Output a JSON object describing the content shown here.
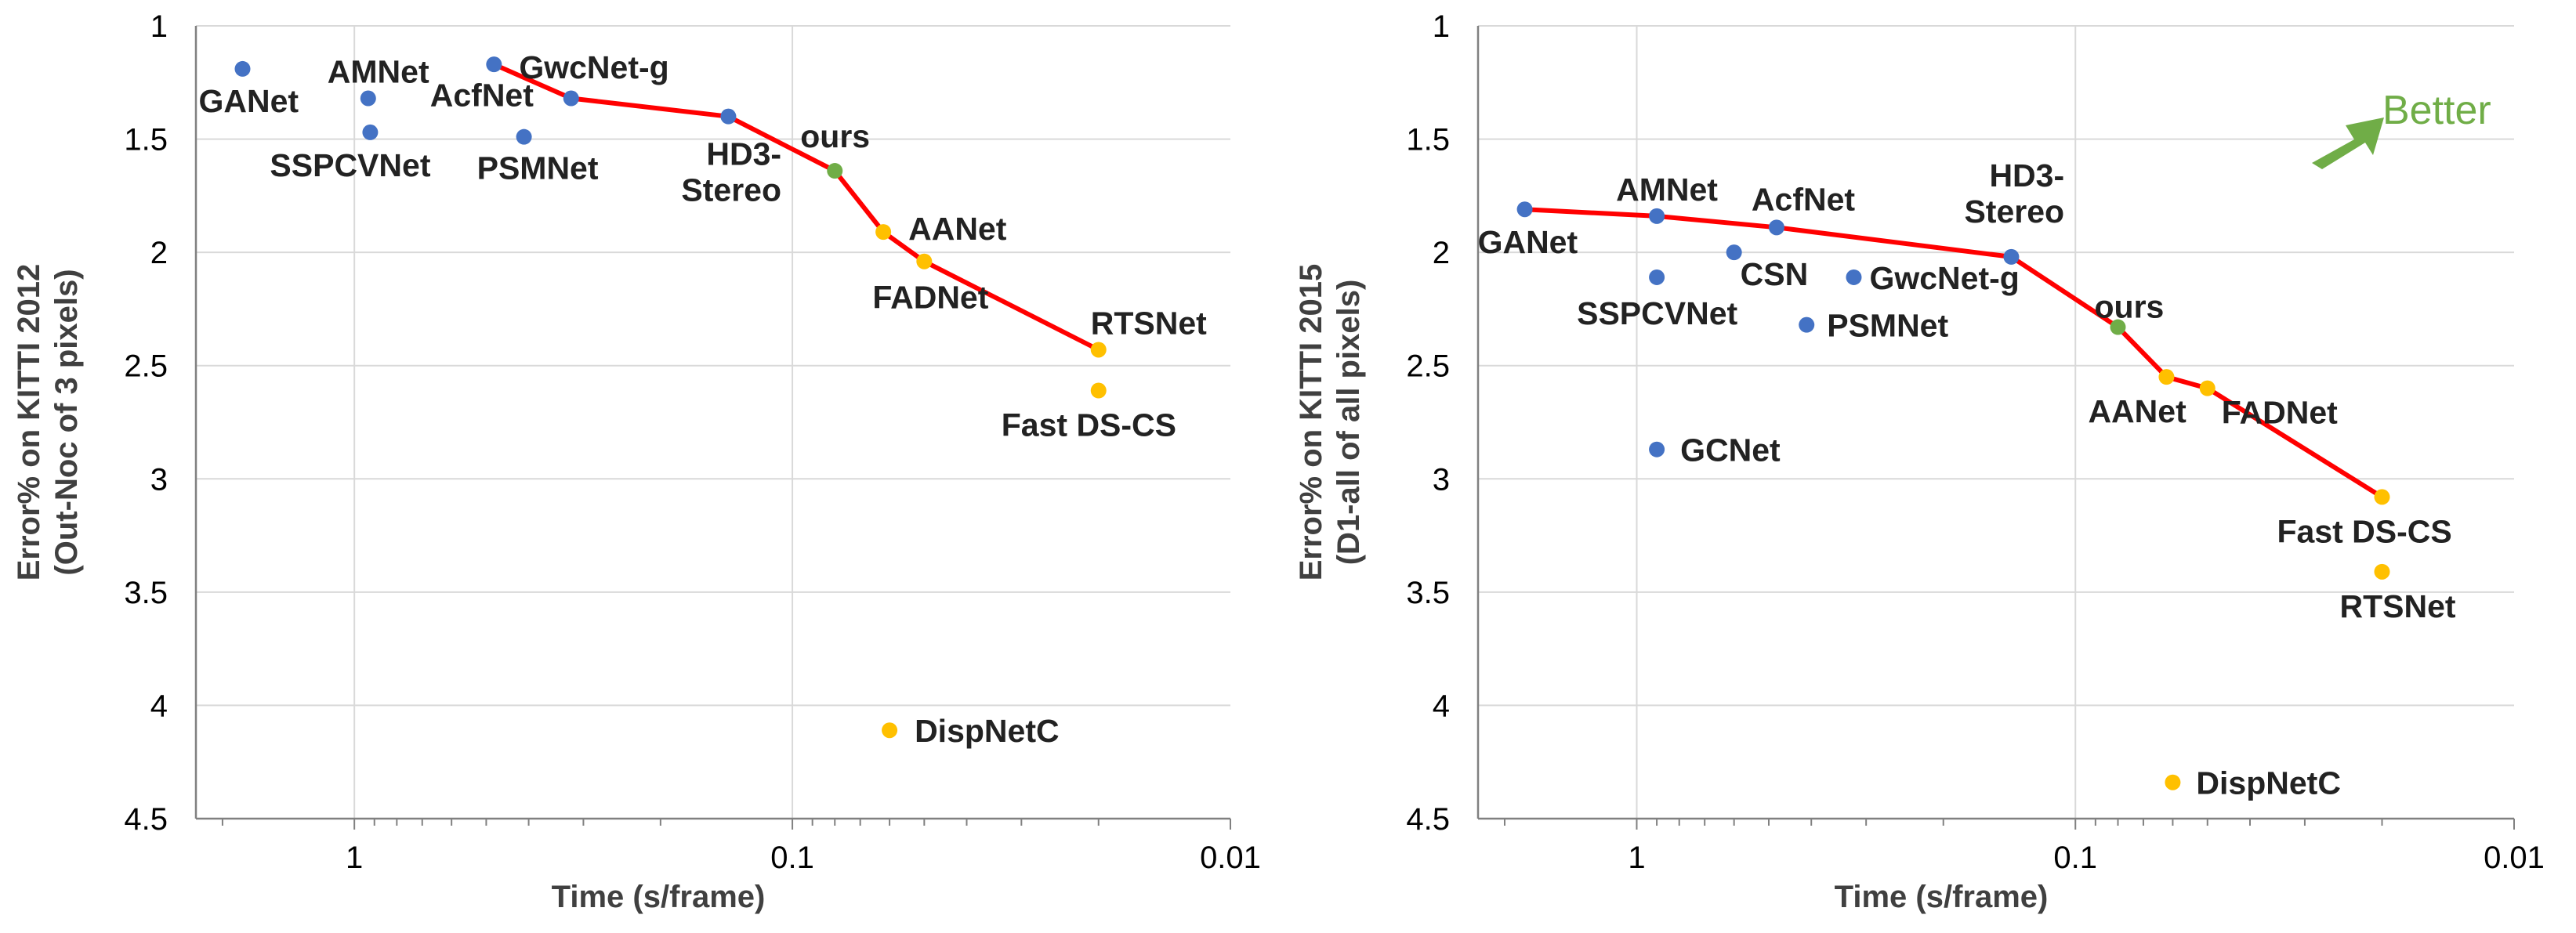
{
  "colors": {
    "blue_point": "#4472c4",
    "yellow_point": "#ffc000",
    "ours_point": "#70ad47",
    "frontier_line": "#ff0000",
    "better_arrow": "#70ad47",
    "grid": "#d9d9d9",
    "axis": "#808080"
  },
  "chart_data": [
    {
      "type": "scatter",
      "xlabel": "Time (s/frame)",
      "ylabel": [
        "Error% on KITTI 2012",
        "(Out-Noc of 3 pixels)"
      ],
      "x_scale": "log",
      "x_reversed": true,
      "xlim": [
        2.3,
        0.01
      ],
      "x_ticks": [
        {
          "value": 1,
          "label": "1"
        },
        {
          "value": 0.1,
          "label": "0.1"
        },
        {
          "value": 0.01,
          "label": "0.01"
        }
      ],
      "y_reversed": true,
      "ylim": [
        1,
        4.5
      ],
      "y_ticks": [
        {
          "value": 1,
          "label": "1"
        },
        {
          "value": 1.5,
          "label": "1.5"
        },
        {
          "value": 2,
          "label": "2"
        },
        {
          "value": 2.5,
          "label": "2.5"
        },
        {
          "value": 3,
          "label": "3"
        },
        {
          "value": 3.5,
          "label": "3.5"
        },
        {
          "value": 4,
          "label": "4"
        },
        {
          "value": 4.5,
          "label": "4.5"
        }
      ],
      "grid": true,
      "points": [
        {
          "name": "GANet",
          "x": 1.8,
          "y": 1.19,
          "color": "blue",
          "label_dx": -56,
          "label_dy": 55
        },
        {
          "name": "AMNet",
          "x": 0.93,
          "y": 1.32,
          "color": "blue",
          "label_dx": -52,
          "label_dy": -20
        },
        {
          "name": "SSPCVNet",
          "x": 0.92,
          "y": 1.47,
          "color": "blue",
          "label_dx": -128,
          "label_dy": 56
        },
        {
          "name": "GwcNet-g",
          "x": 0.48,
          "y": 1.17,
          "color": "blue",
          "label_dx": 32,
          "label_dy": 18
        },
        {
          "name": "AcfNet",
          "x": 0.32,
          "y": 1.32,
          "color": "blue",
          "label_dx": -180,
          "label_dy": 10
        },
        {
          "name": "PSMNet",
          "x": 0.41,
          "y": 1.49,
          "color": "blue",
          "label_dx": -60,
          "label_dy": 54
        },
        {
          "name": "HD3-Stereo",
          "x": 0.14,
          "y": 1.4,
          "color": "blue",
          "label_lines": [
            "HD3-",
            "Stereo"
          ],
          "label_dx": -60,
          "label_dy": 62
        },
        {
          "name": "ours",
          "x": 0.08,
          "y": 1.64,
          "color": "green",
          "label_dx": -44,
          "label_dy": -30
        },
        {
          "name": "AANet",
          "x": 0.062,
          "y": 1.91,
          "color": "yellow",
          "label_dx": 32,
          "label_dy": 10
        },
        {
          "name": "FADNet",
          "x": 0.05,
          "y": 2.04,
          "color": "yellow",
          "label_dx": -66,
          "label_dy": 60
        },
        {
          "name": "RTSNet",
          "x": 0.02,
          "y": 2.43,
          "color": "yellow",
          "label_dx": -10,
          "label_dy": -20
        },
        {
          "name": "Fast DS-CS",
          "x": 0.02,
          "y": 2.61,
          "color": "yellow",
          "label_dx": -124,
          "label_dy": 58
        },
        {
          "name": "DispNetC",
          "x": 0.06,
          "y": 4.11,
          "color": "yellow",
          "label_dx": 32,
          "label_dy": 15
        }
      ],
      "frontier": [
        {
          "x": 0.48,
          "y": 1.17
        },
        {
          "x": 0.32,
          "y": 1.32
        },
        {
          "x": 0.14,
          "y": 1.4
        },
        {
          "x": 0.08,
          "y": 1.64
        },
        {
          "x": 0.062,
          "y": 1.91
        },
        {
          "x": 0.05,
          "y": 2.04
        },
        {
          "x": 0.02,
          "y": 2.43
        }
      ]
    },
    {
      "type": "scatter",
      "xlabel": "Time (s/frame)",
      "ylabel": [
        "Error% on KITTI 2015",
        "(D1-all of all pixels)"
      ],
      "x_scale": "log",
      "x_reversed": true,
      "xlim": [
        2.3,
        0.01
      ],
      "x_ticks": [
        {
          "value": 1,
          "label": "1"
        },
        {
          "value": 0.1,
          "label": "0.1"
        },
        {
          "value": 0.01,
          "label": "0.01"
        }
      ],
      "y_reversed": true,
      "ylim": [
        1,
        4.5
      ],
      "y_ticks": [
        {
          "value": 1,
          "label": "1"
        },
        {
          "value": 1.5,
          "label": "1.5"
        },
        {
          "value": 2,
          "label": "2"
        },
        {
          "value": 2.5,
          "label": "2.5"
        },
        {
          "value": 3,
          "label": "3"
        },
        {
          "value": 3.5,
          "label": "3.5"
        },
        {
          "value": 4,
          "label": "4"
        },
        {
          "value": 4.5,
          "label": "4.5"
        }
      ],
      "grid": true,
      "annotation": "Better",
      "points": [
        {
          "name": "GANet",
          "x": 1.8,
          "y": 1.81,
          "color": "blue",
          "label_dx": -60,
          "label_dy": 56
        },
        {
          "name": "AMNet",
          "x": 0.9,
          "y": 1.84,
          "color": "blue",
          "label_dx": -52,
          "label_dy": -20
        },
        {
          "name": "SSPCVNet",
          "x": 0.9,
          "y": 2.11,
          "color": "blue",
          "label_dx": -102,
          "label_dy": 60
        },
        {
          "name": "CSN",
          "x": 0.6,
          "y": 2.0,
          "color": "blue",
          "label_dx": 8,
          "label_dy": 42
        },
        {
          "name": "AcfNet",
          "x": 0.48,
          "y": 1.89,
          "color": "blue",
          "label_dx": -32,
          "label_dy": -22
        },
        {
          "name": "GwcNet-g",
          "x": 0.32,
          "y": 2.11,
          "color": "blue",
          "label_dx": 20,
          "label_dy": 15
        },
        {
          "name": "PSMNet",
          "x": 0.41,
          "y": 2.32,
          "color": "blue",
          "label_dx": 26,
          "label_dy": 15
        },
        {
          "name": "GCNet",
          "x": 0.9,
          "y": 2.87,
          "color": "blue",
          "label_dx": 30,
          "label_dy": 15
        },
        {
          "name": "HD3-Stereo",
          "x": 0.14,
          "y": 2.02,
          "color": "blue",
          "label_lines": [
            "HD3-",
            "Stereo"
          ],
          "label_dx": -60,
          "label_dy": -90
        },
        {
          "name": "ours",
          "x": 0.08,
          "y": 2.33,
          "color": "green",
          "label_dx": -30,
          "label_dy": -12
        },
        {
          "name": "AANet",
          "x": 0.062,
          "y": 2.55,
          "color": "yellow",
          "label_dx": -100,
          "label_dy": 58
        },
        {
          "name": "FADNet",
          "x": 0.05,
          "y": 2.6,
          "color": "yellow",
          "label_dx": 18,
          "label_dy": 45
        },
        {
          "name": "Fast DS-CS",
          "x": 0.02,
          "y": 3.08,
          "color": "yellow",
          "label_dx": -134,
          "label_dy": 58
        },
        {
          "name": "RTSNet",
          "x": 0.02,
          "y": 3.41,
          "color": "yellow",
          "label_dx": -54,
          "label_dy": 58
        },
        {
          "name": "DispNetC",
          "x": 0.06,
          "y": 4.34,
          "color": "yellow",
          "label_dx": 30,
          "label_dy": 15
        }
      ],
      "frontier": [
        {
          "x": 1.8,
          "y": 1.81
        },
        {
          "x": 0.9,
          "y": 1.84
        },
        {
          "x": 0.48,
          "y": 1.89
        },
        {
          "x": 0.14,
          "y": 2.02
        },
        {
          "x": 0.08,
          "y": 2.33
        },
        {
          "x": 0.062,
          "y": 2.55
        },
        {
          "x": 0.05,
          "y": 2.6
        },
        {
          "x": 0.02,
          "y": 3.08
        }
      ]
    }
  ]
}
